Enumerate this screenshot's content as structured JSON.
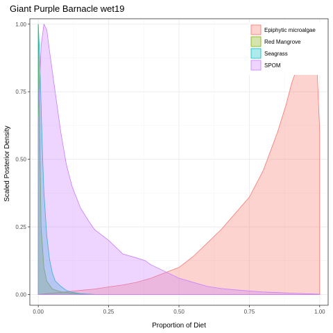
{
  "chart_data": {
    "type": "area",
    "title": "Giant Purple Barnacle wet19",
    "xlabel": "Proportion of Diet",
    "ylabel": "Scaled Posterior Density",
    "xlim": [
      -0.03,
      1.03
    ],
    "ylim": [
      -0.04,
      1.02
    ],
    "x_ticks": [
      0.0,
      0.25,
      0.5,
      0.75,
      1.0
    ],
    "x_tick_labels": [
      "0.00",
      "0.25",
      "0.50",
      "0.75",
      "1.00"
    ],
    "y_ticks": [
      0.0,
      0.25,
      0.5,
      0.75,
      1.0
    ],
    "y_tick_labels": [
      "0.00",
      "0.25",
      "0.50",
      "0.75",
      "1.00"
    ],
    "grid": true,
    "legend_position": "top-right",
    "series": [
      {
        "name": "Epiphytic microalgae",
        "fill": "#F8766D",
        "x": [
          0.0,
          0.05,
          0.1,
          0.15,
          0.2,
          0.25,
          0.3,
          0.35,
          0.4,
          0.45,
          0.5,
          0.55,
          0.6,
          0.65,
          0.7,
          0.75,
          0.8,
          0.85,
          0.88,
          0.9,
          0.92,
          0.94,
          0.96,
          0.98,
          0.99,
          1.0
        ],
        "y": [
          0.0,
          0.005,
          0.01,
          0.015,
          0.02,
          0.028,
          0.035,
          0.045,
          0.06,
          0.08,
          0.1,
          0.14,
          0.19,
          0.24,
          0.3,
          0.36,
          0.46,
          0.6,
          0.7,
          0.78,
          0.84,
          0.9,
          0.98,
          1.0,
          0.85,
          0.6
        ]
      },
      {
        "name": "Red Mangrove",
        "fill": "#7CAE00",
        "x": [
          0.0,
          0.005,
          0.01,
          0.02,
          0.03,
          0.05,
          0.08,
          0.12,
          0.16,
          0.2
        ],
        "y": [
          1.0,
          0.6,
          0.25,
          0.1,
          0.05,
          0.02,
          0.01,
          0.005,
          0.002,
          0.0
        ]
      },
      {
        "name": "Seagrass",
        "fill": "#00BFC4",
        "x": [
          0.0,
          0.005,
          0.01,
          0.015,
          0.02,
          0.03,
          0.04,
          0.05,
          0.06,
          0.07,
          0.08,
          0.1,
          0.12,
          0.15,
          0.18,
          0.2
        ],
        "y": [
          1.0,
          0.88,
          0.7,
          0.52,
          0.38,
          0.22,
          0.13,
          0.08,
          0.05,
          0.04,
          0.03,
          0.015,
          0.008,
          0.003,
          0.001,
          0.0
        ]
      },
      {
        "name": "SPOM",
        "fill": "#C77CFF",
        "x": [
          0.0,
          0.01,
          0.02,
          0.03,
          0.04,
          0.06,
          0.08,
          0.1,
          0.12,
          0.15,
          0.18,
          0.2,
          0.25,
          0.3,
          0.35,
          0.38,
          0.4,
          0.45,
          0.5,
          0.55,
          0.6,
          0.65,
          0.7,
          0.75,
          0.8,
          0.85,
          0.9,
          0.95,
          1.0
        ],
        "y": [
          0.65,
          0.92,
          1.0,
          0.98,
          0.9,
          0.75,
          0.6,
          0.48,
          0.4,
          0.32,
          0.27,
          0.24,
          0.2,
          0.15,
          0.135,
          0.125,
          0.11,
          0.085,
          0.06,
          0.045,
          0.03,
          0.022,
          0.017,
          0.013,
          0.009,
          0.007,
          0.005,
          0.003,
          0.001
        ]
      }
    ]
  }
}
